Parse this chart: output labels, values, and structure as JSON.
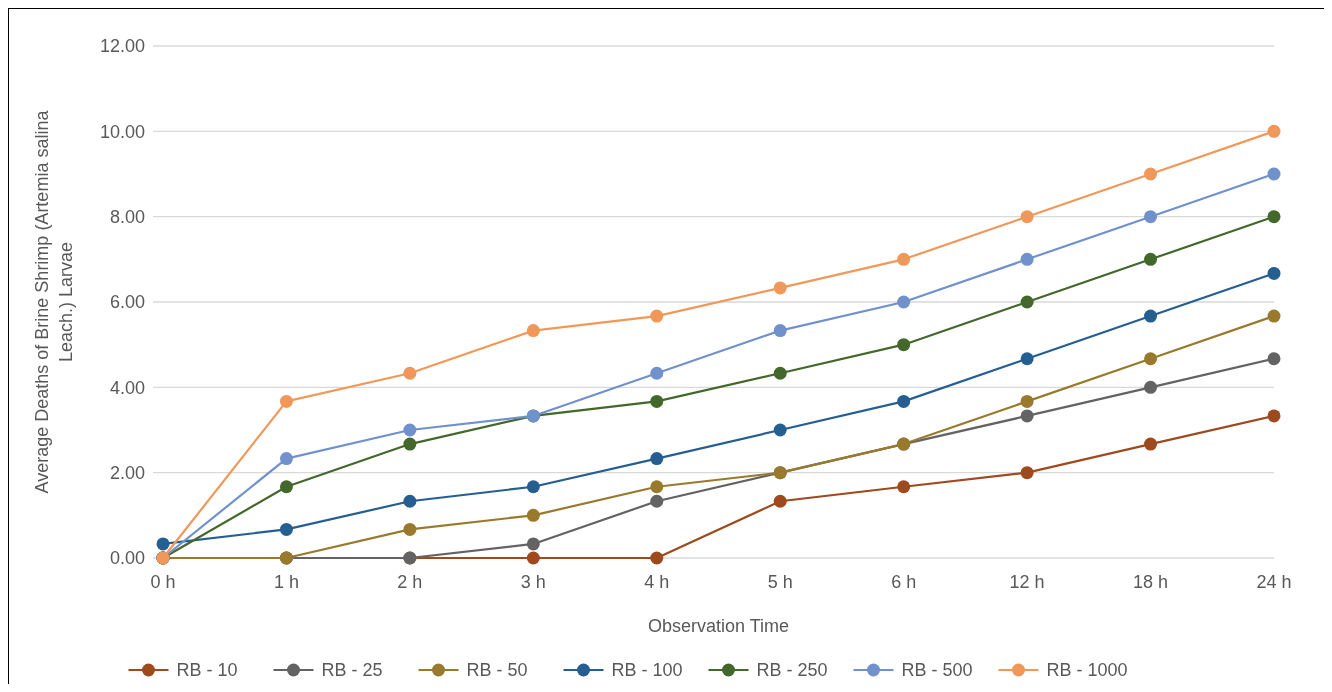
{
  "chart_data": {
    "type": "line",
    "xlabel": "Observation Time",
    "ylabel": "Average Deaths of Brine Shrimp (Artemia salina Leach.) Larvae",
    "categories": [
      "0 h",
      "1 h",
      "2 h",
      "3 h",
      "4 h",
      "5 h",
      "6 h",
      "12 h",
      "18 h",
      "24 h"
    ],
    "ylim": [
      0,
      12
    ],
    "yticks": [
      {
        "value": 0,
        "label": "0.00"
      },
      {
        "value": 2,
        "label": "2.00"
      },
      {
        "value": 4,
        "label": "4.00"
      },
      {
        "value": 6,
        "label": "6.00"
      },
      {
        "value": 8,
        "label": "8.00"
      },
      {
        "value": 10,
        "label": "10.00"
      },
      {
        "value": 12,
        "label": "12.00"
      }
    ],
    "grid": "y",
    "legend": "bottom",
    "marker": "circle",
    "line_style": "solid",
    "series": [
      {
        "name": "RB - 10",
        "color": "#9e4a1e",
        "values": [
          0,
          0,
          0,
          0,
          0,
          1.33,
          1.67,
          2,
          2.67,
          3.33
        ]
      },
      {
        "name": "RB - 25",
        "color": "#636363",
        "values": [
          0,
          0,
          0,
          0.33,
          1.33,
          2,
          2.67,
          3.33,
          4,
          4.67
        ]
      },
      {
        "name": "RB - 50",
        "color": "#997a2c",
        "values": [
          0,
          0,
          0.67,
          1,
          1.67,
          2,
          2.67,
          3.67,
          4.67,
          5.67
        ]
      },
      {
        "name": "RB - 100",
        "color": "#255e91",
        "values": [
          0.33,
          0.67,
          1.33,
          1.67,
          2.33,
          3,
          3.67,
          4.67,
          5.67,
          6.67
        ]
      },
      {
        "name": "RB - 250",
        "color": "#43682b",
        "values": [
          0,
          1.67,
          2.67,
          3.33,
          3.67,
          4.33,
          5,
          6,
          7,
          8
        ]
      },
      {
        "name": "RB - 500",
        "color": "#7091cc",
        "values": [
          0,
          2.33,
          3,
          3.33,
          4.33,
          5.33,
          6,
          7,
          8,
          9
        ]
      },
      {
        "name": "RB - 1000",
        "color": "#f0985a",
        "values": [
          0,
          3.67,
          4.33,
          5.33,
          5.67,
          6.33,
          7,
          8,
          9,
          10
        ]
      }
    ]
  }
}
